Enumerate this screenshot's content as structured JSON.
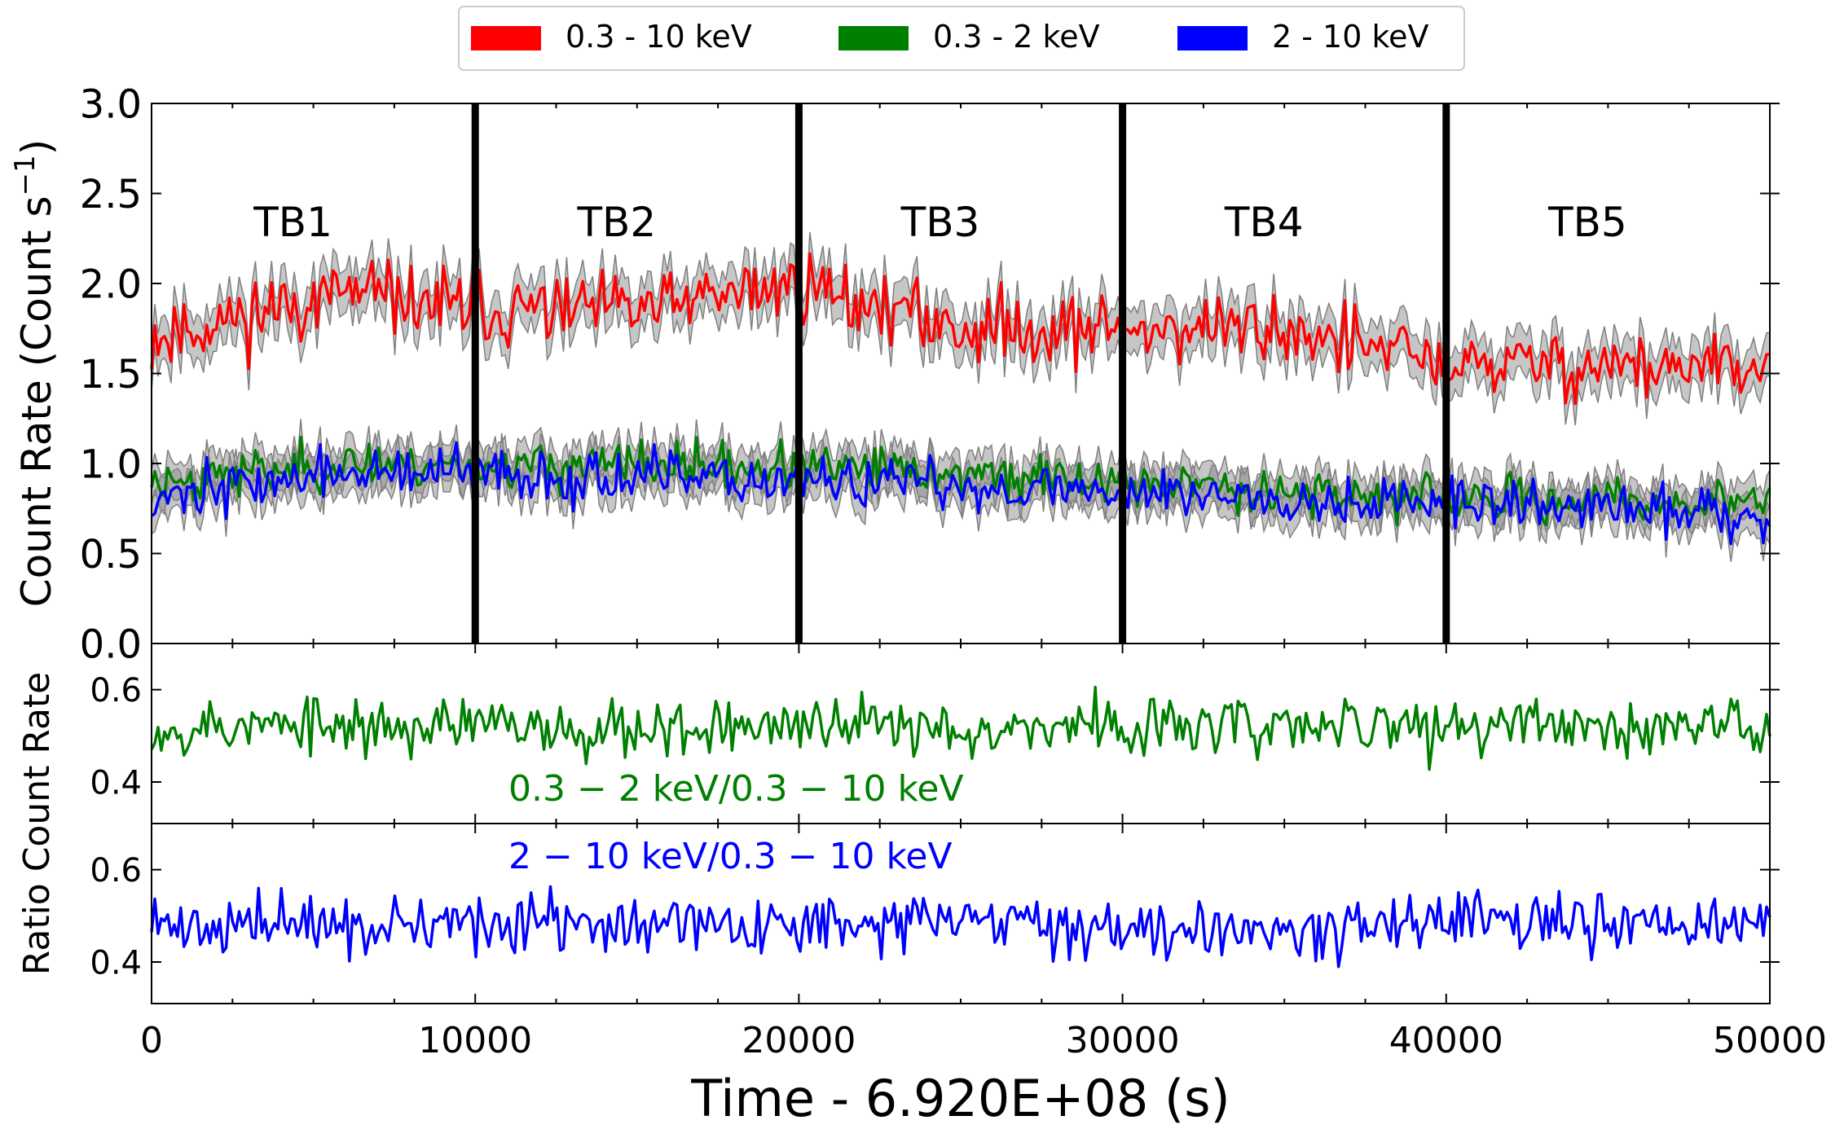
{
  "chart_data": [
    {
      "panel": "top",
      "type": "line",
      "title": "",
      "ylabel": "Count Rate (Count s",
      "ylabel_sup": "−1",
      "ylabel_tail": ")",
      "xlim": [
        0,
        50000
      ],
      "ylim": [
        0.0,
        3.0
      ],
      "yticks": [
        0.0,
        0.5,
        1.0,
        1.5,
        2.0,
        2.5,
        3.0
      ],
      "ytick_labels": [
        "0.0",
        "0.5",
        "1.0",
        "1.5",
        "2.0",
        "2.5",
        "3.0"
      ],
      "band_color": "#808080",
      "series": [
        {
          "name": "0.3 - 10 keV",
          "color": "#ff0000",
          "mean_trend": [
            [
              0,
              1.7
            ],
            [
              6000,
              1.95
            ],
            [
              10000,
              1.85
            ],
            [
              15000,
              1.85
            ],
            [
              20000,
              2.0
            ],
            [
              25000,
              1.75
            ],
            [
              30000,
              1.75
            ],
            [
              35000,
              1.75
            ],
            [
              40000,
              1.55
            ],
            [
              45000,
              1.55
            ],
            [
              50000,
              1.5
            ]
          ],
          "noise": 0.14,
          "band": 0.12,
          "seed": 11
        },
        {
          "name": "0.3 - 2 keV",
          "color": "#008000",
          "mean_trend": [
            [
              0,
              0.9
            ],
            [
              6000,
              1.0
            ],
            [
              20000,
              0.98
            ],
            [
              30000,
              0.9
            ],
            [
              40000,
              0.8
            ],
            [
              50000,
              0.78
            ]
          ],
          "noise": 0.09,
          "band": 0.1,
          "seed": 23
        },
        {
          "name": "2 - 10 keV",
          "color": "#0000ff",
          "mean_trend": [
            [
              0,
              0.82
            ],
            [
              6000,
              0.95
            ],
            [
              20000,
              0.9
            ],
            [
              30000,
              0.85
            ],
            [
              40000,
              0.78
            ],
            [
              50000,
              0.72
            ]
          ],
          "noise": 0.1,
          "band": 0.1,
          "seed": 37
        }
      ],
      "time_bins": [
        {
          "label": "TB1",
          "start": 0,
          "end": 10000
        },
        {
          "label": "TB2",
          "start": 10000,
          "end": 20000
        },
        {
          "label": "TB3",
          "start": 20000,
          "end": 30000
        },
        {
          "label": "TB4",
          "start": 30000,
          "end": 40000
        },
        {
          "label": "TB5",
          "start": 40000,
          "end": 50000
        }
      ],
      "bin_boundaries": [
        10000,
        20000,
        30000,
        40000
      ],
      "legend": {
        "placement": "top-center, above plot",
        "entries": [
          "0.3 - 10 keV",
          "0.3 - 2 keV",
          "2 - 10 keV"
        ]
      }
    },
    {
      "panel": "middle",
      "type": "line",
      "ylabel_line1": "Ratio Count Rate",
      "ylim": [
        0.31,
        0.7
      ],
      "yticks": [
        0.4,
        0.6
      ],
      "ytick_labels": [
        "0.4",
        "0.6"
      ],
      "annotation": "0.3 − 2 keV/0.3 − 10 keV",
      "series": [
        {
          "name": "0.3 - 2 keV / 0.3 - 10 keV",
          "color": "#008000",
          "mean": 0.52,
          "noise": 0.045,
          "seed": 53
        }
      ]
    },
    {
      "panel": "bottom",
      "type": "line",
      "ylim": [
        0.31,
        0.7
      ],
      "yticks": [
        0.4,
        0.6
      ],
      "ytick_labels": [
        "0.4",
        "0.6"
      ],
      "annotation": "2 − 10 keV/0.3 − 10 keV",
      "series": [
        {
          "name": "2 - 10 keV / 0.3 - 10 keV",
          "color": "#0000ff",
          "mean": 0.48,
          "noise": 0.045,
          "seed": 71
        }
      ],
      "xlabel": "Time - 6.920E+08 (s)",
      "xticks": [
        0,
        10000,
        20000,
        30000,
        40000,
        50000
      ],
      "xtick_labels": [
        "0",
        "10000",
        "20000",
        "30000",
        "40000",
        "50000"
      ]
    }
  ],
  "sample_count": 500
}
